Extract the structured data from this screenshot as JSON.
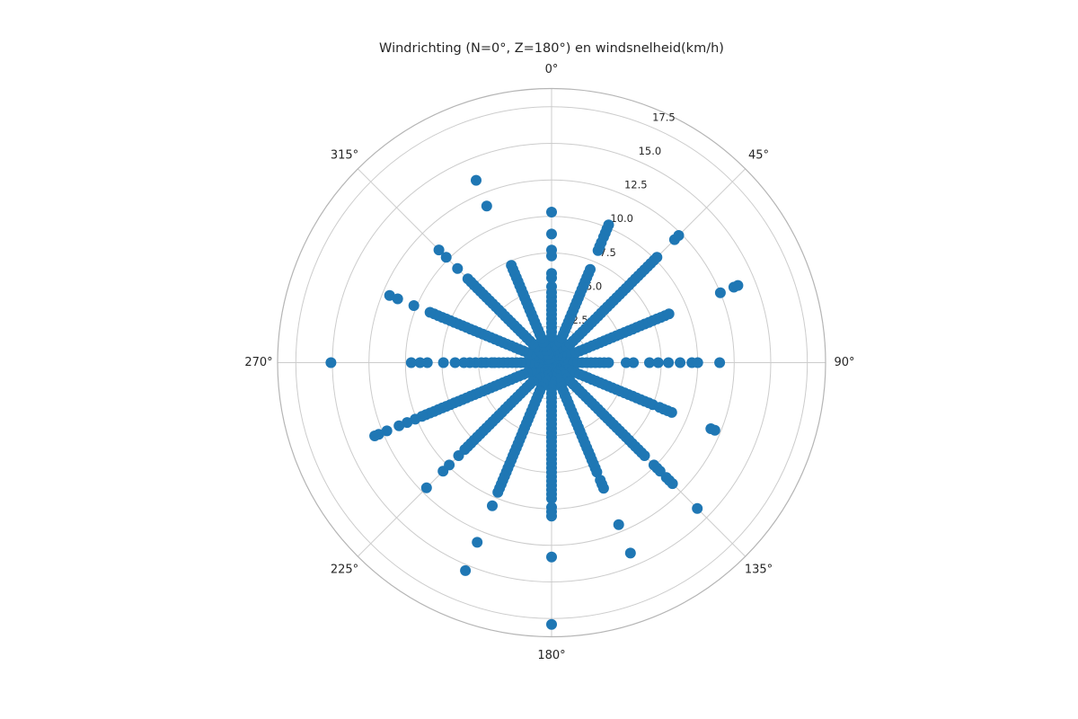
{
  "colors": {
    "point": "#1f77b4",
    "grid": "#cccccc",
    "outer_ring": "#b5b5b5",
    "text": "#262626",
    "background": "#ffffff"
  },
  "chart_data": {
    "type": "scatter",
    "projection": "polar",
    "title": "Windrichting (N=0°, Z=180°) en windsnelheid(km/h)",
    "angle_unit": "degrees",
    "orientation": "0° at top (N), clockwise, 180° at bottom (Z)",
    "r_axis_label": "windsnelheid (km/h)",
    "r_max": 18.75,
    "r_label_angle_deg": 22.5,
    "grid": true,
    "r_ticks": [
      {
        "value": 2.5,
        "label": "2.5"
      },
      {
        "value": 5.0,
        "label": "5.0"
      },
      {
        "value": 7.5,
        "label": "7.5"
      },
      {
        "value": 10.0,
        "label": "10.0"
      },
      {
        "value": 12.5,
        "label": "12.5"
      },
      {
        "value": 15.0,
        "label": "15.0"
      },
      {
        "value": 17.5,
        "label": "17.5"
      }
    ],
    "theta_ticks": [
      {
        "deg": 0,
        "label": "0°"
      },
      {
        "deg": 45,
        "label": "45°"
      },
      {
        "deg": 90,
        "label": "90°"
      },
      {
        "deg": 135,
        "label": "135°"
      },
      {
        "deg": 180,
        "label": "180°"
      },
      {
        "deg": 225,
        "label": "225°"
      },
      {
        "deg": 270,
        "label": "270°"
      },
      {
        "deg": 315,
        "label": "315°"
      }
    ],
    "series": [
      {
        "direction_deg": 0,
        "speeds_kmh": [
          0.3,
          0.6,
          0.9,
          1.2,
          1.5,
          1.8,
          2.1,
          2.4,
          2.7,
          3.0,
          3.3,
          3.6,
          3.9,
          4.2,
          4.5,
          4.8,
          5.2,
          5.8,
          6.1,
          7.3,
          7.7,
          8.8,
          10.3
        ]
      },
      {
        "direction_deg": 22.5,
        "speeds_kmh": [
          0.3,
          0.6,
          0.9,
          1.2,
          1.5,
          1.8,
          2.1,
          2.4,
          2.7,
          3.0,
          3.3,
          3.6,
          3.9,
          4.2,
          4.5,
          4.8,
          5.1,
          5.4,
          5.7,
          6.0,
          6.3,
          6.6,
          6.9,
          8.3,
          8.6,
          8.9,
          9.3,
          9.6,
          9.9,
          10.2
        ]
      },
      {
        "direction_deg": 45,
        "speeds_kmh": [
          0.3,
          0.6,
          0.9,
          1.2,
          1.5,
          1.8,
          2.1,
          2.4,
          2.7,
          3.0,
          3.3,
          3.6,
          3.9,
          4.2,
          4.5,
          4.8,
          5.1,
          5.4,
          5.7,
          6.0,
          6.3,
          6.6,
          6.9,
          7.2,
          7.5,
          7.8,
          8.1,
          8.4,
          8.7,
          9.0,
          9.3,
          9.6,
          9.9,
          10.2,
          11.9,
          12.3
        ]
      },
      {
        "direction_deg": 67.5,
        "speeds_kmh": [
          0.3,
          0.6,
          0.9,
          1.2,
          1.5,
          1.8,
          2.1,
          2.4,
          2.7,
          3.0,
          3.3,
          3.6,
          3.9,
          4.2,
          4.5,
          4.8,
          5.1,
          5.4,
          5.7,
          6.0,
          6.3,
          6.6,
          6.9,
          7.2,
          7.5,
          7.8,
          8.1,
          8.4,
          8.7,
          12.5,
          13.5,
          13.8
        ]
      },
      {
        "direction_deg": 90,
        "speeds_kmh": [
          0.3,
          0.6,
          0.9,
          1.2,
          1.5,
          1.8,
          2.1,
          2.4,
          2.7,
          3.0,
          3.3,
          3.6,
          3.9,
          5.1,
          5.6,
          6.7,
          7.3,
          8.0,
          8.8,
          9.6,
          10.0,
          11.5
        ]
      },
      {
        "direction_deg": 112.5,
        "speeds_kmh": [
          0.3,
          0.6,
          0.9,
          1.2,
          1.5,
          1.8,
          2.1,
          2.4,
          2.7,
          3.0,
          3.3,
          3.6,
          3.9,
          4.2,
          4.5,
          4.8,
          5.1,
          5.4,
          5.7,
          6.0,
          6.3,
          6.6,
          6.9,
          7.2,
          7.5,
          8.0,
          8.3,
          8.6,
          8.9,
          11.8,
          12.1
        ]
      },
      {
        "direction_deg": 135,
        "speeds_kmh": [
          0.3,
          0.6,
          0.9,
          1.2,
          1.5,
          1.8,
          2.1,
          2.4,
          2.7,
          3.0,
          3.3,
          3.6,
          3.9,
          4.2,
          4.5,
          4.8,
          5.1,
          5.4,
          5.7,
          6.0,
          6.3,
          6.6,
          6.9,
          7.2,
          7.5,
          7.8,
          8.1,
          8.4,
          8.7,
          9.0,
          9.9,
          10.2,
          10.5,
          11.1,
          11.4,
          11.7,
          14.1
        ]
      },
      {
        "direction_deg": 157.5,
        "speeds_kmh": [
          0.3,
          0.6,
          0.9,
          1.2,
          1.5,
          1.8,
          2.1,
          2.4,
          2.7,
          3.0,
          3.3,
          3.6,
          3.9,
          4.2,
          4.5,
          4.8,
          5.1,
          5.4,
          5.7,
          6.0,
          6.3,
          6.6,
          6.9,
          7.2,
          7.5,
          7.8,
          8.1,
          8.7,
          9.0,
          9.3,
          12.0,
          14.1
        ]
      },
      {
        "direction_deg": 180,
        "speeds_kmh": [
          0.3,
          0.6,
          0.9,
          1.2,
          1.5,
          1.8,
          2.1,
          2.4,
          2.7,
          3.0,
          3.3,
          3.6,
          3.9,
          4.2,
          4.5,
          4.8,
          5.1,
          5.4,
          5.7,
          6.0,
          6.3,
          6.6,
          6.9,
          7.2,
          7.5,
          7.8,
          8.1,
          8.4,
          8.7,
          9.0,
          9.3,
          9.9,
          10.2,
          10.5,
          13.3,
          17.9
        ]
      },
      {
        "direction_deg": 202.5,
        "speeds_kmh": [
          0.3,
          0.6,
          0.9,
          1.2,
          1.5,
          1.8,
          2.1,
          2.4,
          2.7,
          3.0,
          3.3,
          3.6,
          3.9,
          4.2,
          4.5,
          4.8,
          5.1,
          5.4,
          5.7,
          6.0,
          6.3,
          6.6,
          6.9,
          7.2,
          7.5,
          7.8,
          8.1,
          8.4,
          8.7,
          9.0,
          9.3,
          9.6,
          10.6,
          13.3,
          15.4
        ]
      },
      {
        "direction_deg": 225,
        "speeds_kmh": [
          0.3,
          0.6,
          0.9,
          1.2,
          1.5,
          1.8,
          2.1,
          2.4,
          2.7,
          3.0,
          3.3,
          3.6,
          3.9,
          4.2,
          4.5,
          4.8,
          5.1,
          5.4,
          5.7,
          6.0,
          6.3,
          6.6,
          6.9,
          7.2,
          7.5,
          7.8,
          8.1,
          8.4,
          9.0,
          9.9,
          10.5,
          12.1
        ]
      },
      {
        "direction_deg": 247.5,
        "speeds_kmh": [
          0.3,
          0.6,
          0.9,
          1.2,
          1.5,
          1.8,
          2.1,
          2.4,
          2.7,
          3.0,
          3.3,
          3.6,
          3.9,
          4.2,
          4.5,
          4.8,
          5.1,
          5.4,
          5.7,
          6.0,
          6.3,
          6.6,
          6.9,
          7.2,
          7.5,
          7.8,
          8.1,
          8.4,
          8.7,
          9.0,
          9.3,
          9.6,
          10.1,
          10.7,
          11.3,
          12.2,
          12.8,
          13.1
        ]
      },
      {
        "direction_deg": 270,
        "speeds_kmh": [
          0.3,
          0.6,
          0.9,
          1.2,
          1.5,
          1.8,
          2.1,
          2.4,
          2.7,
          3.0,
          3.3,
          3.6,
          3.9,
          4.1,
          4.5,
          4.8,
          5.2,
          5.6,
          6.0,
          6.6,
          7.4,
          8.5,
          9.0,
          9.6,
          15.1
        ]
      },
      {
        "direction_deg": 292.5,
        "speeds_kmh": [
          0.3,
          0.6,
          0.9,
          1.2,
          1.5,
          1.8,
          2.1,
          2.4,
          2.7,
          3.0,
          3.3,
          3.6,
          3.9,
          4.2,
          4.5,
          4.8,
          5.1,
          5.4,
          5.7,
          6.0,
          6.3,
          6.6,
          6.9,
          7.2,
          7.5,
          7.8,
          8.1,
          8.4,
          8.7,
          9.0,
          10.2,
          11.4,
          12.0
        ]
      },
      {
        "direction_deg": 315,
        "speeds_kmh": [
          0.3,
          0.6,
          0.9,
          1.2,
          1.5,
          1.8,
          2.1,
          2.4,
          2.7,
          3.0,
          3.3,
          3.6,
          3.9,
          4.2,
          4.5,
          4.8,
          5.1,
          5.4,
          5.7,
          6.0,
          6.3,
          6.6,
          6.9,
          7.2,
          7.5,
          7.8,
          8.1,
          9.1,
          10.2,
          10.9
        ]
      },
      {
        "direction_deg": 337.5,
        "speeds_kmh": [
          0.3,
          0.6,
          0.9,
          1.2,
          1.5,
          1.8,
          2.1,
          2.4,
          2.7,
          3.0,
          3.3,
          3.6,
          3.9,
          4.2,
          4.5,
          4.8,
          5.1,
          5.4,
          5.7,
          6.0,
          6.3,
          6.6,
          6.9,
          7.2,
          11.6,
          13.5
        ]
      }
    ]
  }
}
